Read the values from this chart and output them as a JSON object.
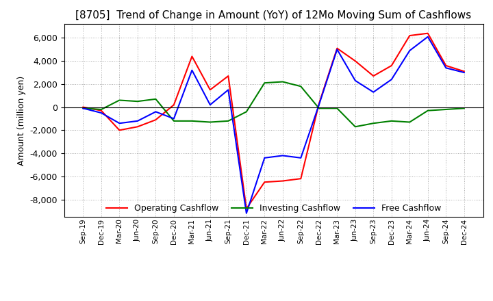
{
  "title": "[8705]  Trend of Change in Amount (YoY) of 12Mo Moving Sum of Cashflows",
  "ylabel": "Amount (million yen)",
  "x_labels": [
    "Sep-19",
    "Dec-19",
    "Mar-20",
    "Jun-20",
    "Sep-20",
    "Dec-20",
    "Mar-21",
    "Jun-21",
    "Sep-21",
    "Dec-21",
    "Mar-22",
    "Jun-22",
    "Sep-22",
    "Dec-22",
    "Mar-23",
    "Jun-23",
    "Sep-23",
    "Dec-23",
    "Mar-24",
    "Jun-24",
    "Sep-24",
    "Dec-24"
  ],
  "operating": [
    0,
    -300,
    -2000,
    -1700,
    -1100,
    200,
    4400,
    1500,
    2700,
    -8800,
    -6500,
    -6400,
    -6200,
    300,
    5100,
    4000,
    2700,
    3600,
    6200,
    6400,
    3600,
    3100
  ],
  "investing": [
    -100,
    -200,
    600,
    500,
    700,
    -1200,
    -1200,
    -1300,
    -1200,
    -400,
    2100,
    2200,
    1800,
    -100,
    -100,
    -1700,
    -1400,
    -1200,
    -1300,
    -300,
    -200,
    -100
  ],
  "free": [
    -100,
    -500,
    -1400,
    -1200,
    -400,
    -1000,
    3200,
    200,
    1500,
    -9200,
    -4400,
    -4200,
    -4400,
    200,
    5000,
    2300,
    1300,
    2400,
    4900,
    6100,
    3400,
    3000
  ],
  "ylim": [
    -9500,
    7200
  ],
  "yticks": [
    -8000,
    -6000,
    -4000,
    -2000,
    0,
    2000,
    4000,
    6000
  ],
  "operating_color": "#ff0000",
  "investing_color": "#008000",
  "free_color": "#0000ff",
  "line_width": 1.5,
  "title_fontsize": 11,
  "legend_labels": [
    "Operating Cashflow",
    "Investing Cashflow",
    "Free Cashflow"
  ],
  "grid_color": "#aaaaaa",
  "bg_color": "#ffffff"
}
